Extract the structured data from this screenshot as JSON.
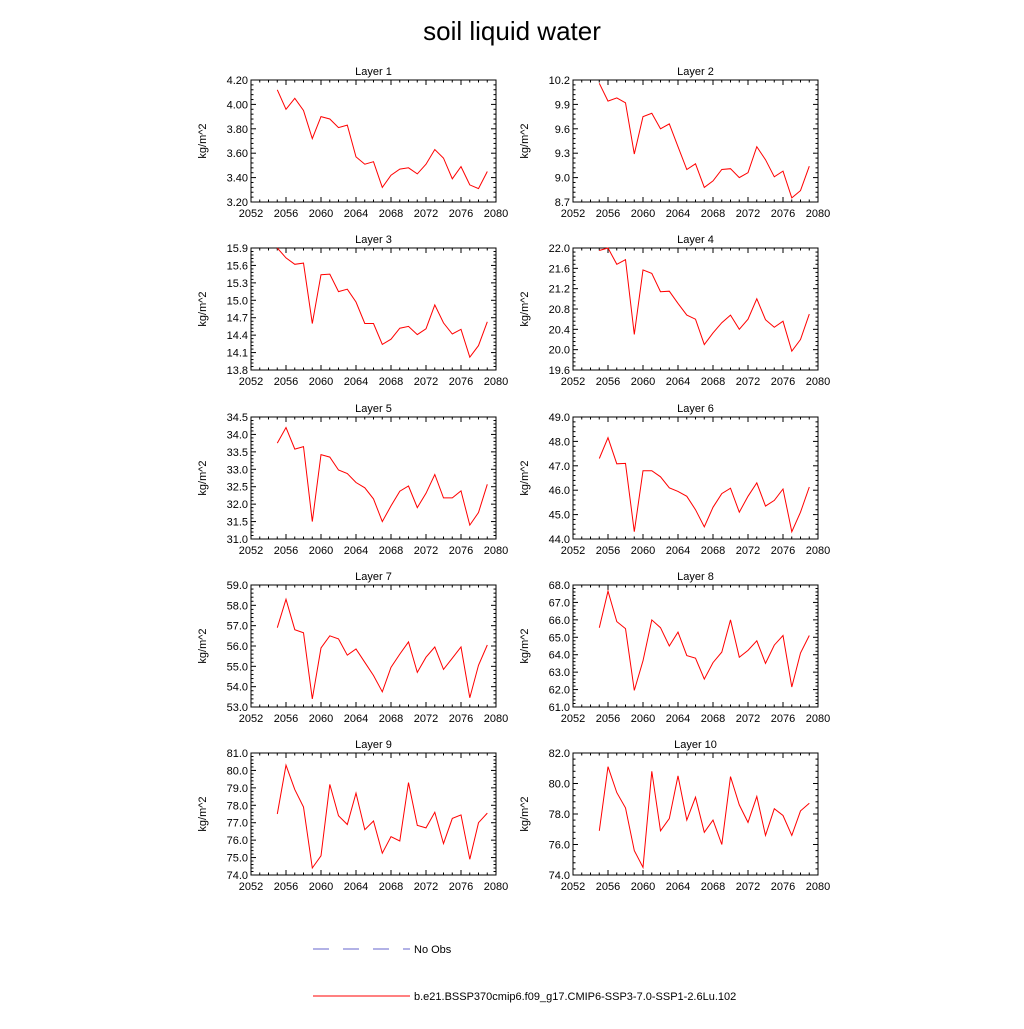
{
  "title": "soil liquid water",
  "colors": {
    "model": "#ff0000",
    "obs": "#6666cc",
    "axis": "#000000"
  },
  "legend": {
    "obs_label": "No Obs",
    "model_label": "b.e21.BSSP370cmip6.f09_g17.CMIP6-SSP3-7.0-SSP1-2.6Lu.102"
  },
  "chart_data": [
    {
      "type": "line",
      "title": "Layer 1",
      "xlabel": "",
      "ylabel": "kg/m^2",
      "xlim": [
        2052,
        2080
      ],
      "ylim": [
        3.2,
        4.2
      ],
      "xticks": [
        "2052",
        "2056",
        "2060",
        "2064",
        "2068",
        "2072",
        "2076",
        "2080"
      ],
      "yticks": [
        "3.20",
        "3.40",
        "3.60",
        "3.80",
        "4.00",
        "4.20"
      ],
      "series": [
        {
          "x": [
            2055,
            2056,
            2057,
            2058,
            2059,
            2060,
            2061,
            2062,
            2063,
            2064,
            2065,
            2066,
            2067,
            2068,
            2069,
            2070,
            2071,
            2072,
            2073,
            2074,
            2075,
            2076,
            2077,
            2078,
            2079
          ],
          "values": [
            4.12,
            3.96,
            4.05,
            3.95,
            3.72,
            3.9,
            3.88,
            3.81,
            3.83,
            3.57,
            3.51,
            3.53,
            3.32,
            3.42,
            3.47,
            3.48,
            3.43,
            3.51,
            3.63,
            3.56,
            3.39,
            3.49,
            3.34,
            3.31,
            3.45
          ]
        }
      ]
    },
    {
      "type": "line",
      "title": "Layer 2",
      "xlabel": "",
      "ylabel": "kg/m^2",
      "xlim": [
        2052,
        2080
      ],
      "ylim": [
        8.7,
        10.2
      ],
      "xticks": [
        "2052",
        "2056",
        "2060",
        "2064",
        "2068",
        "2072",
        "2076",
        "2080"
      ],
      "yticks": [
        "8.7",
        "9.0",
        "9.3",
        "9.6",
        "9.9",
        "10.2"
      ],
      "series": [
        {
          "x": [
            2055,
            2056,
            2057,
            2058,
            2059,
            2060,
            2061,
            2062,
            2063,
            2064,
            2065,
            2066,
            2067,
            2068,
            2069,
            2070,
            2071,
            2072,
            2073,
            2074,
            2075,
            2076,
            2077,
            2078,
            2079
          ],
          "values": [
            10.16,
            9.94,
            9.98,
            9.92,
            9.29,
            9.75,
            9.79,
            9.6,
            9.66,
            9.38,
            9.1,
            9.17,
            8.88,
            8.96,
            9.1,
            9.11,
            9.0,
            9.06,
            9.38,
            9.22,
            9.01,
            9.08,
            8.75,
            8.84,
            9.14
          ]
        }
      ]
    },
    {
      "type": "line",
      "title": "Layer 3",
      "xlabel": "",
      "ylabel": "kg/m^2",
      "xlim": [
        2052,
        2080
      ],
      "ylim": [
        13.8,
        15.9
      ],
      "xticks": [
        "2052",
        "2056",
        "2060",
        "2064",
        "2068",
        "2072",
        "2076",
        "2080"
      ],
      "yticks": [
        "13.8",
        "14.1",
        "14.4",
        "14.7",
        "15.0",
        "15.3",
        "15.6",
        "15.9"
      ],
      "series": [
        {
          "x": [
            2055,
            2056,
            2057,
            2058,
            2059,
            2060,
            2061,
            2062,
            2063,
            2064,
            2065,
            2066,
            2067,
            2068,
            2069,
            2070,
            2071,
            2072,
            2073,
            2074,
            2075,
            2076,
            2077,
            2078,
            2079
          ],
          "values": [
            15.9,
            15.73,
            15.62,
            15.64,
            14.6,
            15.44,
            15.45,
            15.15,
            15.19,
            14.97,
            14.6,
            14.6,
            14.24,
            14.33,
            14.52,
            14.55,
            14.41,
            14.51,
            14.92,
            14.61,
            14.42,
            14.5,
            14.02,
            14.22,
            14.63
          ]
        }
      ]
    },
    {
      "type": "line",
      "title": "Layer 4",
      "xlabel": "",
      "ylabel": "kg/m^2",
      "xlim": [
        2052,
        2080
      ],
      "ylim": [
        19.6,
        22.0
      ],
      "xticks": [
        "2052",
        "2056",
        "2060",
        "2064",
        "2068",
        "2072",
        "2076",
        "2080"
      ],
      "yticks": [
        "19.6",
        "20.0",
        "20.4",
        "20.8",
        "21.2",
        "21.6",
        "22.0"
      ],
      "series": [
        {
          "x": [
            2055,
            2056,
            2057,
            2058,
            2059,
            2060,
            2061,
            2062,
            2063,
            2064,
            2065,
            2066,
            2067,
            2068,
            2069,
            2070,
            2071,
            2072,
            2073,
            2074,
            2075,
            2076,
            2077,
            2078,
            2079
          ],
          "values": [
            21.95,
            22.0,
            21.68,
            21.77,
            20.3,
            21.57,
            21.5,
            21.14,
            21.15,
            20.91,
            20.68,
            20.6,
            20.1,
            20.33,
            20.53,
            20.68,
            20.4,
            20.6,
            21.0,
            20.59,
            20.44,
            20.56,
            19.97,
            20.2,
            20.7
          ]
        }
      ]
    },
    {
      "type": "line",
      "title": "Layer 5",
      "xlabel": "",
      "ylabel": "kg/m^2",
      "xlim": [
        2052,
        2080
      ],
      "ylim": [
        31.0,
        34.5
      ],
      "xticks": [
        "2052",
        "2056",
        "2060",
        "2064",
        "2068",
        "2072",
        "2076",
        "2080"
      ],
      "yticks": [
        "31.0",
        "31.5",
        "32.0",
        "32.5",
        "33.0",
        "33.5",
        "34.0",
        "34.5"
      ],
      "series": [
        {
          "x": [
            2055,
            2056,
            2057,
            2058,
            2059,
            2060,
            2061,
            2062,
            2063,
            2064,
            2065,
            2066,
            2067,
            2068,
            2069,
            2070,
            2071,
            2072,
            2073,
            2074,
            2075,
            2076,
            2077,
            2078,
            2079
          ],
          "values": [
            33.75,
            34.2,
            33.58,
            33.65,
            31.5,
            33.42,
            33.35,
            32.98,
            32.88,
            32.62,
            32.47,
            32.15,
            31.5,
            31.95,
            32.37,
            32.52,
            31.9,
            32.31,
            32.85,
            32.18,
            32.18,
            32.38,
            31.4,
            31.76,
            32.57
          ]
        }
      ]
    },
    {
      "type": "line",
      "title": "Layer 6",
      "xlabel": "",
      "ylabel": "kg/m^2",
      "xlim": [
        2052,
        2080
      ],
      "ylim": [
        44.0,
        49.0
      ],
      "xticks": [
        "2052",
        "2056",
        "2060",
        "2064",
        "2068",
        "2072",
        "2076",
        "2080"
      ],
      "yticks": [
        "44.0",
        "45.0",
        "46.0",
        "47.0",
        "48.0",
        "49.0"
      ],
      "series": [
        {
          "x": [
            2055,
            2056,
            2057,
            2058,
            2059,
            2060,
            2061,
            2062,
            2063,
            2064,
            2065,
            2066,
            2067,
            2068,
            2069,
            2070,
            2071,
            2072,
            2073,
            2074,
            2075,
            2076,
            2077,
            2078,
            2079
          ],
          "values": [
            47.3,
            48.15,
            47.08,
            47.1,
            44.3,
            46.8,
            46.8,
            46.55,
            46.1,
            45.95,
            45.75,
            45.2,
            44.5,
            45.3,
            45.86,
            46.08,
            45.1,
            45.75,
            46.3,
            45.35,
            45.58,
            46.05,
            44.3,
            45.1,
            46.13
          ]
        }
      ]
    },
    {
      "type": "line",
      "title": "Layer 7",
      "xlabel": "",
      "ylabel": "kg/m^2",
      "xlim": [
        2052,
        2080
      ],
      "ylim": [
        53.0,
        59.0
      ],
      "xticks": [
        "2052",
        "2056",
        "2060",
        "2064",
        "2068",
        "2072",
        "2076",
        "2080"
      ],
      "yticks": [
        "53.0",
        "54.0",
        "55.0",
        "56.0",
        "57.0",
        "58.0",
        "59.0"
      ],
      "series": [
        {
          "x": [
            2055,
            2056,
            2057,
            2058,
            2059,
            2060,
            2061,
            2062,
            2063,
            2064,
            2065,
            2066,
            2067,
            2068,
            2069,
            2070,
            2071,
            2072,
            2073,
            2074,
            2075,
            2076,
            2077,
            2078,
            2079
          ],
          "values": [
            56.9,
            58.3,
            56.8,
            56.65,
            53.4,
            55.9,
            56.5,
            56.35,
            55.55,
            55.85,
            55.2,
            54.55,
            53.75,
            54.95,
            55.6,
            56.2,
            54.7,
            55.45,
            55.95,
            54.85,
            55.4,
            55.95,
            53.45,
            55.05,
            56.05
          ]
        }
      ]
    },
    {
      "type": "line",
      "title": "Layer 8",
      "xlabel": "",
      "ylabel": "kg/m^2",
      "xlim": [
        2052,
        2080
      ],
      "ylim": [
        61.0,
        68.0
      ],
      "xticks": [
        "2052",
        "2056",
        "2060",
        "2064",
        "2068",
        "2072",
        "2076",
        "2080"
      ],
      "yticks": [
        "61.0",
        "62.0",
        "63.0",
        "64.0",
        "65.0",
        "66.0",
        "67.0",
        "68.0"
      ],
      "series": [
        {
          "x": [
            2055,
            2056,
            2057,
            2058,
            2059,
            2060,
            2061,
            2062,
            2063,
            2064,
            2065,
            2066,
            2067,
            2068,
            2069,
            2070,
            2071,
            2072,
            2073,
            2074,
            2075,
            2076,
            2077,
            2078,
            2079
          ],
          "values": [
            65.55,
            67.65,
            65.9,
            65.5,
            61.95,
            63.65,
            66.0,
            65.55,
            64.5,
            65.3,
            63.95,
            63.8,
            62.6,
            63.55,
            64.15,
            66.0,
            63.85,
            64.25,
            64.8,
            63.5,
            64.55,
            65.1,
            62.15,
            64.1,
            65.1
          ]
        }
      ]
    },
    {
      "type": "line",
      "title": "Layer 9",
      "xlabel": "",
      "ylabel": "kg/m^2",
      "xlim": [
        2052,
        2080
      ],
      "ylim": [
        74.0,
        81.0
      ],
      "xticks": [
        "2052",
        "2056",
        "2060",
        "2064",
        "2068",
        "2072",
        "2076",
        "2080"
      ],
      "yticks": [
        "74.0",
        "75.0",
        "76.0",
        "77.0",
        "78.0",
        "79.0",
        "80.0",
        "81.0"
      ],
      "series": [
        {
          "x": [
            2055,
            2056,
            2057,
            2058,
            2059,
            2060,
            2061,
            2062,
            2063,
            2064,
            2065,
            2066,
            2067,
            2068,
            2069,
            2070,
            2071,
            2072,
            2073,
            2074,
            2075,
            2076,
            2077,
            2078,
            2079
          ],
          "values": [
            77.5,
            80.3,
            78.9,
            77.9,
            74.4,
            75.1,
            79.2,
            77.4,
            76.9,
            78.7,
            76.6,
            77.1,
            75.25,
            76.2,
            75.95,
            79.3,
            76.85,
            76.7,
            77.6,
            75.8,
            77.25,
            77.45,
            74.9,
            77.0,
            77.55
          ]
        }
      ]
    },
    {
      "type": "line",
      "title": "Layer 10",
      "xlabel": "",
      "ylabel": "kg/m^2",
      "xlim": [
        2052,
        2080
      ],
      "ylim": [
        74.0,
        82.0
      ],
      "xticks": [
        "2052",
        "2056",
        "2060",
        "2064",
        "2068",
        "2072",
        "2076",
        "2080"
      ],
      "yticks": [
        "74.0",
        "76.0",
        "78.0",
        "80.0",
        "82.0"
      ],
      "series": [
        {
          "x": [
            2055,
            2056,
            2057,
            2058,
            2059,
            2060,
            2061,
            2062,
            2063,
            2064,
            2065,
            2066,
            2067,
            2068,
            2069,
            2070,
            2071,
            2072,
            2073,
            2074,
            2075,
            2076,
            2077,
            2078,
            2079
          ],
          "values": [
            76.9,
            81.1,
            79.4,
            78.4,
            75.6,
            74.5,
            80.8,
            76.9,
            77.7,
            80.5,
            77.6,
            79.1,
            76.8,
            77.6,
            76.0,
            80.45,
            78.6,
            77.45,
            79.15,
            76.6,
            78.35,
            77.9,
            76.6,
            78.2,
            78.7
          ]
        }
      ]
    }
  ]
}
